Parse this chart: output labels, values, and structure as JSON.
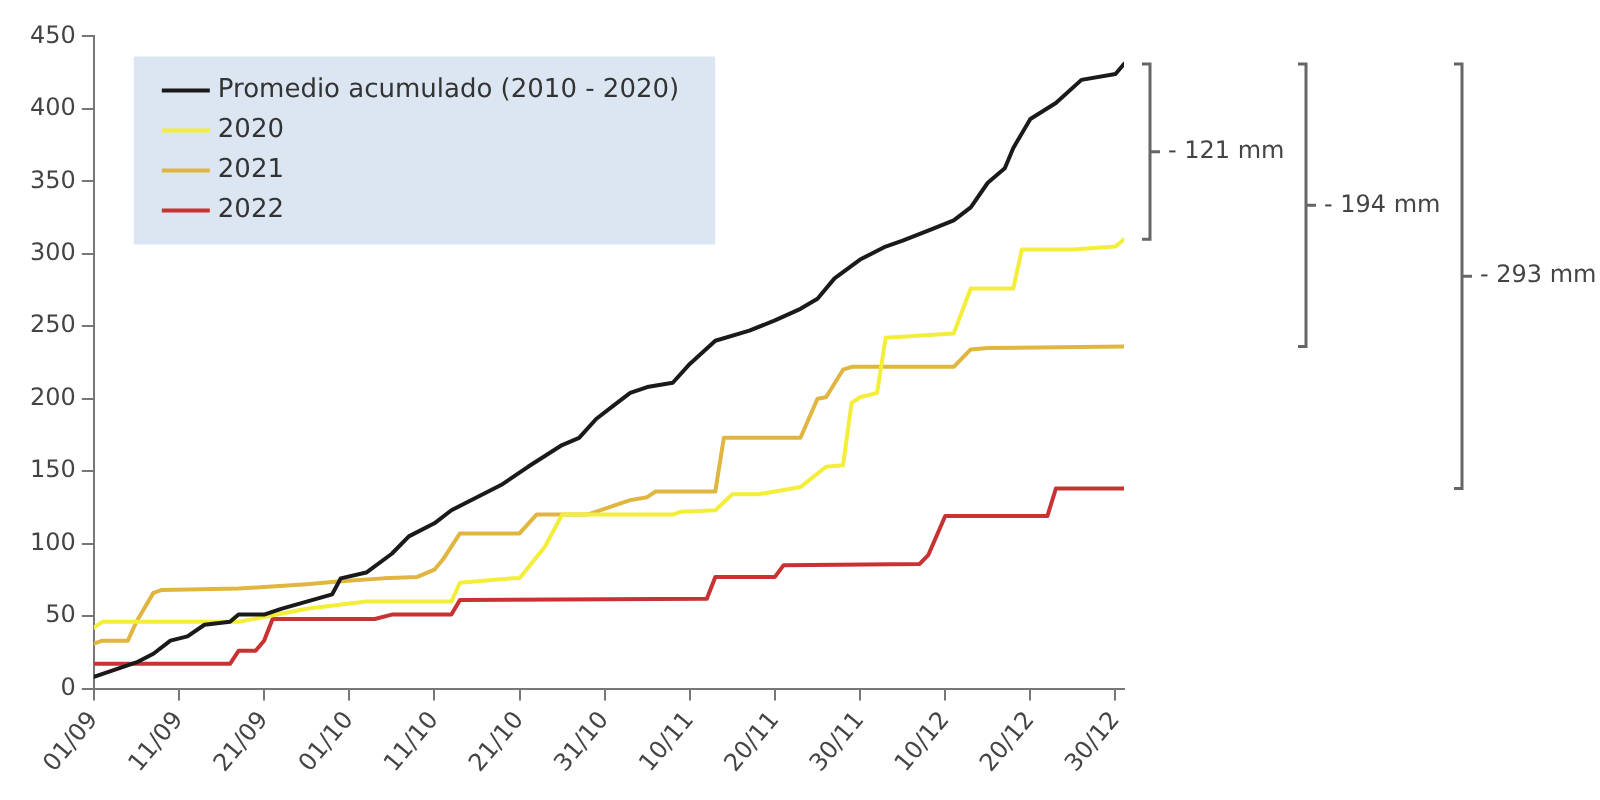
{
  "chart_data": {
    "type": "line",
    "xlim": [
      "--09-01",
      "--12-31"
    ],
    "xticks": [
      {
        "value": "--09-01",
        "label": "01/09"
      },
      {
        "value": "--09-11",
        "label": "11/09"
      },
      {
        "value": "--09-21",
        "label": "21/09"
      },
      {
        "value": "--10-01",
        "label": "01/10"
      },
      {
        "value": "--10-11",
        "label": "11/10"
      },
      {
        "value": "--10-21",
        "label": "21/10"
      },
      {
        "value": "--10-31",
        "label": "31/10"
      },
      {
        "value": "--11-10",
        "label": "10/11"
      },
      {
        "value": "--11-20",
        "label": "20/11"
      },
      {
        "value": "--11-30",
        "label": "30/11"
      },
      {
        "value": "--12-10",
        "label": "10/12"
      },
      {
        "value": "--12-20",
        "label": "20/12"
      },
      {
        "value": "--12-30",
        "label": "30/12"
      }
    ],
    "ylim": [
      0,
      450
    ],
    "yticks": [
      0,
      50,
      100,
      150,
      200,
      250,
      300,
      350,
      400,
      450
    ],
    "grid": false,
    "legend": "top left",
    "marker": "none",
    "line_style": "solid",
    "annotations": [
      "- 121 mm",
      "- 194 mm",
      "- 293 mm"
    ],
    "series": [
      {
        "name": "Promedio acumulado (2010 - 2020)",
        "color": "#1a1a1a",
        "x": [
          "--09-01",
          "--09-06",
          "--09-08",
          "--09-10",
          "--09-12",
          "--09-14",
          "--09-17",
          "--09-18",
          "--09-21",
          "--09-23",
          "--09-26",
          "--09-29",
          "--09-30",
          "--10-03",
          "--10-06",
          "--10-08",
          "--10-11",
          "--10-13",
          "--10-16",
          "--10-19",
          "--10-22",
          "--10-26",
          "--10-28",
          "--10-30",
          "--11-01",
          "--11-03",
          "--11-05",
          "--11-08",
          "--11-10",
          "--11-13",
          "--11-17",
          "--11-20",
          "--11-23",
          "--11-25",
          "--11-27",
          "--11-30",
          "--12-03",
          "--12-05",
          "--12-08",
          "--12-11",
          "--12-13",
          "--12-15",
          "--12-17",
          "--12-18",
          "--12-20",
          "--12-23",
          "--12-26",
          "--12-30",
          "--12-31"
        ],
        "values": [
          8,
          18,
          24,
          33,
          36,
          44,
          46,
          51,
          51,
          55,
          60,
          65,
          76,
          80,
          93,
          105,
          114,
          123,
          132,
          141,
          153,
          168,
          173,
          186,
          195,
          204,
          208,
          211,
          224,
          240,
          247,
          254,
          262,
          269,
          283,
          296,
          305,
          309,
          316,
          323,
          332,
          349,
          359,
          373,
          393,
          404,
          420,
          424,
          431
        ]
      },
      {
        "name": "2020",
        "color": "#f2ee3a",
        "x": [
          "--09-01",
          "--09-02",
          "--09-18",
          "--09-26",
          "--10-03",
          "--10-13",
          "--10-14",
          "--10-20",
          "--10-21",
          "--10-24",
          "--10-26",
          "--11-08",
          "--11-09",
          "--11-13",
          "--11-15",
          "--11-18",
          "--11-20",
          "--11-23",
          "--11-26",
          "--11-28",
          "--11-29",
          "--11-30",
          "--12-02",
          "--12-03",
          "--12-11",
          "--12-13",
          "--12-18",
          "--12-19",
          "--12-25",
          "--12-30",
          "--12-31"
        ],
        "values": [
          42,
          46,
          46,
          55,
          60,
          60,
          73,
          76,
          76,
          98,
          120,
          120,
          122,
          123,
          134,
          134,
          136,
          139,
          153,
          154,
          197,
          201,
          204,
          242,
          245,
          276,
          276,
          303,
          303,
          305,
          310
        ]
      },
      {
        "name": "2021",
        "color": "#e0b640",
        "x": [
          "--09-01",
          "--09-02",
          "--09-05",
          "--09-06",
          "--09-08",
          "--09-09",
          "--09-18",
          "--09-21",
          "--09-26",
          "--09-28",
          "--09-30",
          "--10-05",
          "--10-09",
          "--10-11",
          "--10-12",
          "--10-14",
          "--10-21",
          "--10-23",
          "--10-29",
          "--11-03",
          "--11-05",
          "--11-06",
          "--11-13",
          "--11-14",
          "--11-23",
          "--11-25",
          "--11-26",
          "--11-28",
          "--11-29",
          "--12-11",
          "--12-13",
          "--12-15",
          "--12-31"
        ],
        "values": [
          31,
          33,
          33,
          46,
          66,
          68,
          69,
          70,
          72,
          73,
          74,
          76,
          77,
          82,
          89,
          107,
          107,
          120,
          120,
          130,
          132,
          136,
          136,
          173,
          173,
          200,
          201,
          220,
          222,
          222,
          234,
          235,
          236
        ]
      },
      {
        "name": "2022",
        "color": "#c83232",
        "x": [
          "--09-01",
          "--09-17",
          "--09-18",
          "--09-20",
          "--09-21",
          "--09-22",
          "--10-04",
          "--10-06",
          "--10-13",
          "--10-14",
          "--11-12",
          "--11-13",
          "--11-20",
          "--11-21",
          "--12-07",
          "--12-08",
          "--12-10",
          "--12-22",
          "--12-23",
          "--12-31"
        ],
        "values": [
          17,
          17,
          26,
          26,
          33,
          48,
          48,
          51,
          51,
          61,
          62,
          77,
          77,
          85,
          86,
          92,
          119,
          119,
          138,
          138
        ]
      }
    ]
  }
}
